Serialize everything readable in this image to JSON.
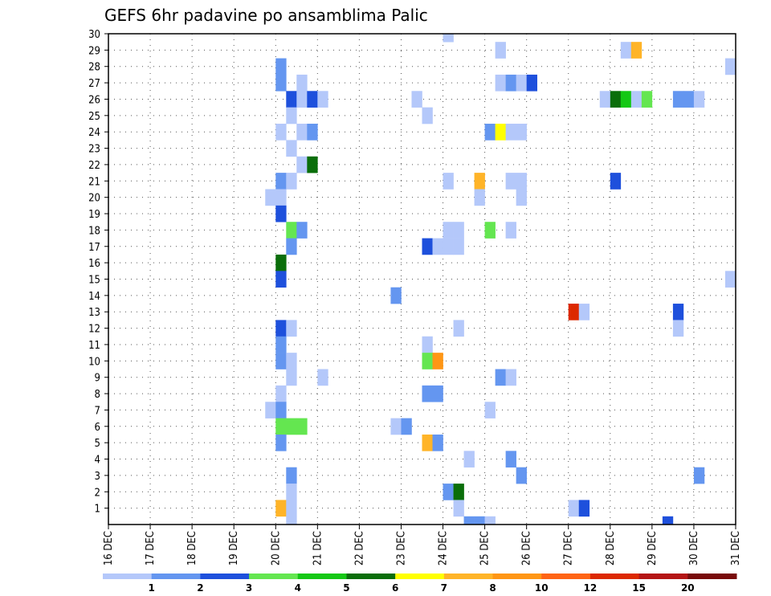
{
  "chart_data": {
    "type": "heatmap",
    "title": "GEFS 6hr padavine po ansamblima Palic",
    "x_tick_labels": [
      "16 DEC",
      "17 DEC",
      "18 DEC",
      "19 DEC",
      "20 DEC",
      "21 DEC",
      "22 DEC",
      "23 DEC",
      "24 DEC",
      "25 DEC",
      "26 DEC",
      "27 DEC",
      "28 DEC",
      "29 DEC",
      "30 DEC",
      "31 DEC"
    ],
    "y_tick_labels": [
      "1",
      "2",
      "3",
      "4",
      "5",
      "6",
      "7",
      "8",
      "9",
      "10",
      "11",
      "12",
      "13",
      "14",
      "15",
      "16",
      "17",
      "18",
      "19",
      "20",
      "21",
      "22",
      "23",
      "24",
      "25",
      "26",
      "27",
      "28",
      "29",
      "30"
    ],
    "x_axis": {
      "unit": "day",
      "range": [
        16,
        31
      ],
      "step_days": 0.25
    },
    "y_axis": {
      "unit": "ensemble member",
      "range": [
        0,
        30
      ]
    },
    "grid": true,
    "colorbar": {
      "position": "bottom",
      "labels": [
        "1",
        "2",
        "3",
        "4",
        "5",
        "6",
        "7",
        "8",
        "10",
        "12",
        "15",
        "20"
      ],
      "colors": [
        "#b4c8fa",
        "#6496f0",
        "#1e50dc",
        "#64e650",
        "#14c814",
        "#0a6e0a",
        "#ffff00",
        "#ffb428",
        "#ff9614",
        "#ff6414",
        "#dc2800",
        "#b41414",
        "#780a0a"
      ]
    },
    "cells": [
      {
        "x": 24.0,
        "y": 30,
        "c": 0
      },
      {
        "x": 25.25,
        "y": 29,
        "c": 0
      },
      {
        "x": 28.25,
        "y": 29,
        "c": 0
      },
      {
        "x": 28.5,
        "y": 29,
        "c": 7
      },
      {
        "x": 20.0,
        "y": 28,
        "c": 1
      },
      {
        "x": 30.75,
        "y": 28,
        "c": 0
      },
      {
        "x": 20.0,
        "y": 27,
        "c": 1
      },
      {
        "x": 20.5,
        "y": 27,
        "c": 0
      },
      {
        "x": 25.25,
        "y": 27,
        "c": 0
      },
      {
        "x": 25.5,
        "y": 27,
        "c": 1
      },
      {
        "x": 25.75,
        "y": 27,
        "c": 0
      },
      {
        "x": 26.0,
        "y": 27,
        "c": 2
      },
      {
        "x": 20.25,
        "y": 26,
        "c": 2
      },
      {
        "x": 20.5,
        "y": 26,
        "c": 0
      },
      {
        "x": 20.75,
        "y": 26,
        "c": 2
      },
      {
        "x": 21.0,
        "y": 26,
        "c": 0
      },
      {
        "x": 23.25,
        "y": 26,
        "c": 0
      },
      {
        "x": 27.75,
        "y": 26,
        "c": 0
      },
      {
        "x": 28.0,
        "y": 26,
        "c": 5
      },
      {
        "x": 28.25,
        "y": 26,
        "c": 4
      },
      {
        "x": 28.5,
        "y": 26,
        "c": 0
      },
      {
        "x": 28.75,
        "y": 26,
        "c": 3
      },
      {
        "x": 29.5,
        "y": 26,
        "c": 1
      },
      {
        "x": 29.75,
        "y": 26,
        "c": 1
      },
      {
        "x": 30.0,
        "y": 26,
        "c": 0
      },
      {
        "x": 20.25,
        "y": 25,
        "c": 0
      },
      {
        "x": 23.5,
        "y": 25,
        "c": 0
      },
      {
        "x": 20.0,
        "y": 24,
        "c": 0
      },
      {
        "x": 20.5,
        "y": 24,
        "c": 0
      },
      {
        "x": 20.75,
        "y": 24,
        "c": 1
      },
      {
        "x": 25.0,
        "y": 24,
        "c": 1
      },
      {
        "x": 25.25,
        "y": 24,
        "c": 6
      },
      {
        "x": 25.5,
        "y": 24,
        "c": 0
      },
      {
        "x": 25.75,
        "y": 24,
        "c": 0
      },
      {
        "x": 20.25,
        "y": 23,
        "c": 0
      },
      {
        "x": 20.5,
        "y": 22,
        "c": 0
      },
      {
        "x": 20.75,
        "y": 22,
        "c": 5
      },
      {
        "x": 20.0,
        "y": 21,
        "c": 1
      },
      {
        "x": 20.25,
        "y": 21,
        "c": 0
      },
      {
        "x": 24.0,
        "y": 21,
        "c": 0
      },
      {
        "x": 24.75,
        "y": 21,
        "c": 7
      },
      {
        "x": 25.5,
        "y": 21,
        "c": 0
      },
      {
        "x": 25.75,
        "y": 21,
        "c": 0
      },
      {
        "x": 28.0,
        "y": 21,
        "c": 2
      },
      {
        "x": 19.75,
        "y": 20,
        "c": 0
      },
      {
        "x": 20.0,
        "y": 20,
        "c": 0
      },
      {
        "x": 24.75,
        "y": 20,
        "c": 0
      },
      {
        "x": 25.75,
        "y": 20,
        "c": 0
      },
      {
        "x": 20.0,
        "y": 19,
        "c": 2
      },
      {
        "x": 20.25,
        "y": 18,
        "c": 3
      },
      {
        "x": 20.5,
        "y": 18,
        "c": 1
      },
      {
        "x": 24.0,
        "y": 18,
        "c": 0
      },
      {
        "x": 24.25,
        "y": 18,
        "c": 0
      },
      {
        "x": 25.0,
        "y": 18,
        "c": 3
      },
      {
        "x": 25.5,
        "y": 18,
        "c": 0
      },
      {
        "x": 20.25,
        "y": 17,
        "c": 1
      },
      {
        "x": 23.5,
        "y": 17,
        "c": 2
      },
      {
        "x": 23.75,
        "y": 17,
        "c": 0
      },
      {
        "x": 24.0,
        "y": 17,
        "c": 0
      },
      {
        "x": 24.25,
        "y": 17,
        "c": 0
      },
      {
        "x": 20.0,
        "y": 16,
        "c": 5
      },
      {
        "x": 20.0,
        "y": 15,
        "c": 2
      },
      {
        "x": 30.75,
        "y": 15,
        "c": 0
      },
      {
        "x": 22.75,
        "y": 14,
        "c": 1
      },
      {
        "x": 27.0,
        "y": 13,
        "c": 10
      },
      {
        "x": 27.25,
        "y": 13,
        "c": 0
      },
      {
        "x": 29.5,
        "y": 13,
        "c": 2
      },
      {
        "x": 20.0,
        "y": 12,
        "c": 2
      },
      {
        "x": 20.25,
        "y": 12,
        "c": 0
      },
      {
        "x": 24.25,
        "y": 12,
        "c": 0
      },
      {
        "x": 29.5,
        "y": 12,
        "c": 0
      },
      {
        "x": 20.0,
        "y": 11,
        "c": 1
      },
      {
        "x": 23.5,
        "y": 11,
        "c": 0
      },
      {
        "x": 20.0,
        "y": 10,
        "c": 1
      },
      {
        "x": 20.25,
        "y": 10,
        "c": 0
      },
      {
        "x": 23.5,
        "y": 10,
        "c": 3
      },
      {
        "x": 23.75,
        "y": 10,
        "c": 8
      },
      {
        "x": 20.25,
        "y": 9,
        "c": 0
      },
      {
        "x": 21.0,
        "y": 9,
        "c": 0
      },
      {
        "x": 25.25,
        "y": 9,
        "c": 1
      },
      {
        "x": 25.5,
        "y": 9,
        "c": 0
      },
      {
        "x": 20.0,
        "y": 8,
        "c": 0
      },
      {
        "x": 23.5,
        "y": 8,
        "c": 1
      },
      {
        "x": 23.75,
        "y": 8,
        "c": 1
      },
      {
        "x": 19.75,
        "y": 7,
        "c": 0
      },
      {
        "x": 20.0,
        "y": 7,
        "c": 1
      },
      {
        "x": 25.0,
        "y": 7,
        "c": 0
      },
      {
        "x": 20.0,
        "y": 6,
        "c": 3
      },
      {
        "x": 20.25,
        "y": 6,
        "c": 3
      },
      {
        "x": 20.5,
        "y": 6,
        "c": 3
      },
      {
        "x": 22.75,
        "y": 6,
        "c": 0
      },
      {
        "x": 23.0,
        "y": 6,
        "c": 1
      },
      {
        "x": 20.0,
        "y": 5,
        "c": 1
      },
      {
        "x": 23.5,
        "y": 5,
        "c": 7
      },
      {
        "x": 23.75,
        "y": 5,
        "c": 1
      },
      {
        "x": 24.5,
        "y": 4,
        "c": 0
      },
      {
        "x": 25.5,
        "y": 4,
        "c": 1
      },
      {
        "x": 20.25,
        "y": 3,
        "c": 1
      },
      {
        "x": 25.75,
        "y": 3,
        "c": 1
      },
      {
        "x": 30.0,
        "y": 3,
        "c": 1
      },
      {
        "x": 20.25,
        "y": 2,
        "c": 0
      },
      {
        "x": 24.0,
        "y": 2,
        "c": 1
      },
      {
        "x": 24.25,
        "y": 2,
        "c": 5
      },
      {
        "x": 20.0,
        "y": 1,
        "c": 7
      },
      {
        "x": 20.25,
        "y": 1,
        "c": 0
      },
      {
        "x": 24.25,
        "y": 1,
        "c": 0
      },
      {
        "x": 27.0,
        "y": 1,
        "c": 0
      },
      {
        "x": 27.25,
        "y": 1,
        "c": 2
      },
      {
        "x": 20.25,
        "y": 0,
        "c": 0
      },
      {
        "x": 24.5,
        "y": 0,
        "c": 1
      },
      {
        "x": 24.75,
        "y": 0,
        "c": 1
      },
      {
        "x": 25.0,
        "y": 0,
        "c": 0
      },
      {
        "x": 29.25,
        "y": 0,
        "c": 2
      }
    ]
  }
}
